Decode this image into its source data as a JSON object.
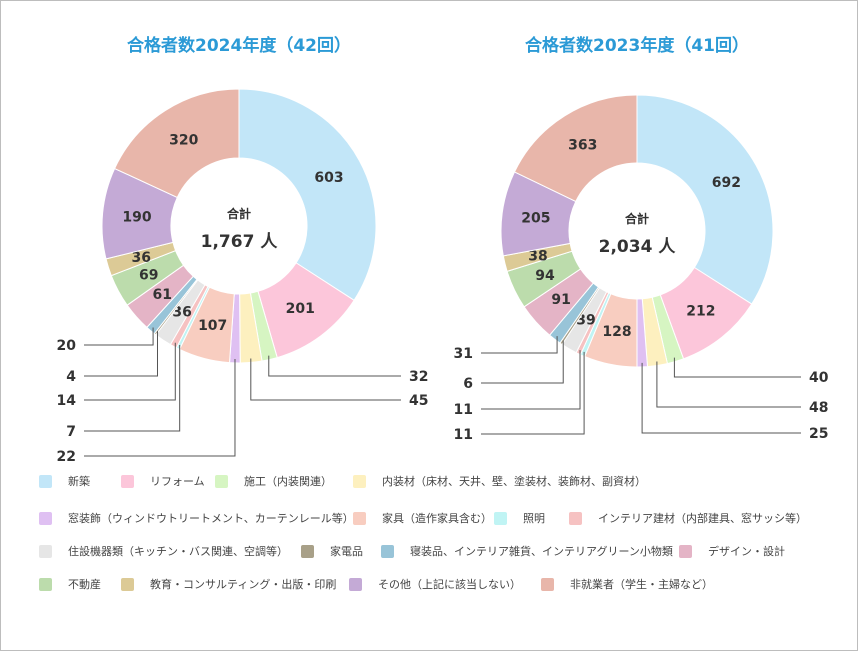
{
  "chart_data": [
    {
      "type": "pie",
      "title": "合格者数2024年度（42回）",
      "total_label": "合計",
      "total": "1,767 人",
      "values": [
        603,
        201,
        32,
        45,
        22,
        107,
        7,
        14,
        36,
        4,
        20,
        61,
        69,
        36,
        190,
        320
      ]
    },
    {
      "type": "pie",
      "title": "合格者数2023年度（41回）",
      "total_label": "合計",
      "total": "2,034 人",
      "values": [
        692,
        212,
        40,
        48,
        25,
        128,
        11,
        11,
        39,
        6,
        31,
        91,
        94,
        38,
        205,
        363
      ]
    }
  ],
  "categories": [
    "新築",
    "リフォーム",
    "施工（内装関連）",
    "内装材（床材、天井、壁、塗装材、装飾材、副資材）",
    "窓装飾（ウィンドウトリートメント、カーテンレール等）",
    "家具（造作家具含む）",
    "照明",
    "インテリア建材（内部建具、窓サッシ等）",
    "住設機器類（キッチン・バス関連、空調等）",
    "家電品",
    "寝装品、インテリア雑貨、インテリアグリーン小物類",
    "デザイン・設計",
    "不動産",
    "教育・コンサルティング・出版・印刷",
    "その他（上記に該当しない）",
    "非就業者（学生・主婦など）"
  ],
  "colors": [
    "#c2e6f8",
    "#fcc6da",
    "#d6f5c2",
    "#fdf0bf",
    "#dfc0f2",
    "#f8cdc0",
    "#c0f4f4",
    "#f6c2c2",
    "#e6e6e6",
    "#a8a088",
    "#98c4d8",
    "#e4b4c6",
    "#bcdcac",
    "#dcca96",
    "#c4aad6",
    "#e8b6aa"
  ]
}
